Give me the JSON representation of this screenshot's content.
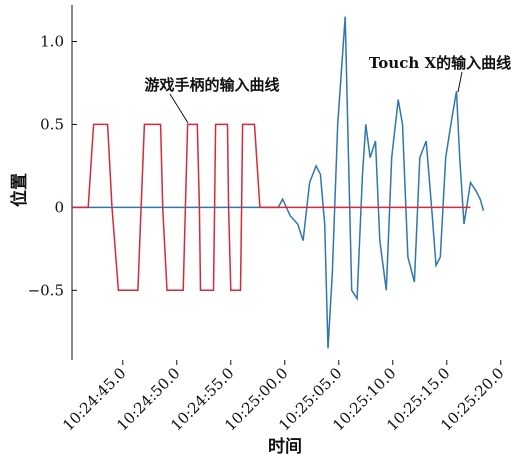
{
  "chart_data": {
    "type": "line",
    "xlabel": "时间",
    "ylabel": "位置",
    "xlim": [
      "10:24:40.3",
      "10:25:20.3"
    ],
    "ylim": [
      -0.92,
      1.22
    ],
    "xticks": [
      "10:24:45.0",
      "10:24:50.0",
      "10:24:55.0",
      "10:25:00.0",
      "10:25:05.0",
      "10:25:10.0",
      "10:25:15.0",
      "10:25:20.0"
    ],
    "yticks": [
      {
        "value": 1,
        "label": "1.0"
      },
      0.5,
      0,
      {
        "value": -0.5,
        "label": "−0.5"
      }
    ],
    "annotations": [
      {
        "text": "游戏手柄的输入曲线"
      },
      {
        "text": "Touch X的输入曲线"
      }
    ],
    "series": [
      {
        "name": "游戏手柄的输入曲线",
        "color": "#d62a3a",
        "x": [
          "10:24:40.3",
          "10:24:41.8",
          "10:24:42.3",
          "10:24:43.6",
          "10:24:44.0",
          "10:24:44.6",
          "10:24:46.4",
          "10:24:46.7",
          "10:24:47.0",
          "10:24:48.5",
          "10:24:48.7",
          "10:24:49.1",
          "10:24:50.6",
          "10:24:50.8",
          "10:24:51.0",
          "10:24:51.9",
          "10:24:52.1",
          "10:24:52.2",
          "10:24:53.4",
          "10:24:53.5",
          "10:24:53.6",
          "10:24:54.7",
          "10:24:54.8",
          "10:24:55.0",
          "10:24:55.9",
          "10:24:56.0",
          "10:24:56.1",
          "10:24:57.2",
          "10:24:57.7",
          "10:25:17.2"
        ],
        "values": [
          0,
          0,
          0.5,
          0.5,
          0,
          -0.5,
          -0.5,
          0,
          0.5,
          0.5,
          0,
          -0.5,
          -0.5,
          0,
          0.5,
          0.5,
          0,
          -0.5,
          -0.5,
          0,
          0.5,
          0.5,
          0,
          -0.5,
          -0.5,
          0,
          0.5,
          0.5,
          0,
          0
        ]
      },
      {
        "name": "Touch X的输入曲线",
        "color": "#2e77b0",
        "x": [
          "10:24:40.3",
          "10:24:59.4",
          "10:24:59.8",
          "10:25:00.5",
          "10:25:01.2",
          "10:25:01.7",
          "10:25:02.3",
          "10:25:02.9",
          "10:25:03.3",
          "10:25:03.7",
          "10:25:04.0",
          "10:25:04.4",
          "10:25:04.9",
          "10:25:05.6",
          "10:25:05.9",
          "10:25:06.2",
          "10:25:06.7",
          "10:25:07.2",
          "10:25:07.5",
          "10:25:07.9",
          "10:25:08.4",
          "10:25:08.8",
          "10:25:09.4",
          "10:25:09.9",
          "10:25:10.5",
          "10:25:10.9",
          "10:25:11.4",
          "10:25:12.0",
          "10:25:12.5",
          "10:25:13.1",
          "10:25:13.6",
          "10:25:14.0",
          "10:25:14.4",
          "10:25:14.9",
          "10:25:15.5",
          "10:25:15.9",
          "10:25:16.2",
          "10:25:16.6",
          "10:25:17.2",
          "10:25:17.7",
          "10:25:18.1",
          "10:25:18.4"
        ],
        "values": [
          0,
          0,
          0.05,
          -0.05,
          -0.1,
          -0.2,
          0.15,
          0.25,
          0.2,
          -0.1,
          -0.85,
          -0.4,
          0.5,
          1.15,
          0.3,
          -0.5,
          -0.55,
          0.2,
          0.5,
          0.3,
          0.4,
          -0.2,
          -0.5,
          0.3,
          0.65,
          0.5,
          -0.3,
          -0.45,
          0.3,
          0.4,
          0,
          -0.35,
          -0.3,
          0.3,
          0.55,
          0.7,
          0.3,
          -0.1,
          0.15,
          0.1,
          0.05,
          -0.02
        ]
      }
    ]
  }
}
